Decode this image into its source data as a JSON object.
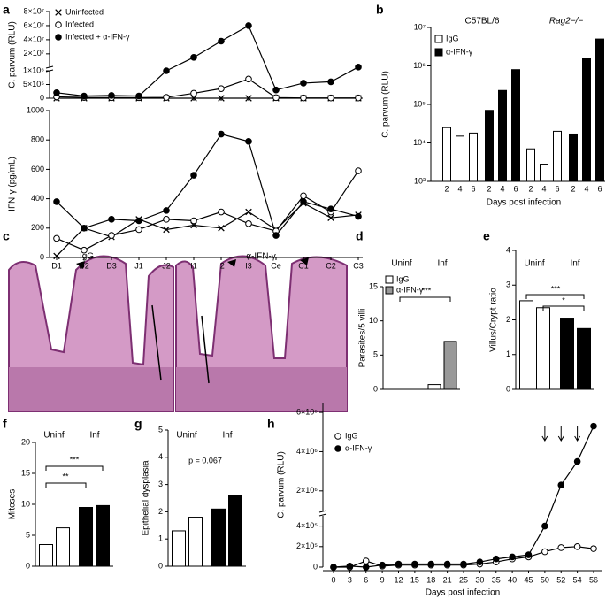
{
  "chart_data": [
    {
      "panel": "a",
      "type": "line",
      "categories": [
        "D1",
        "D2",
        "D3",
        "J1",
        "J2",
        "I1",
        "I2",
        "I3",
        "Ce",
        "C1",
        "C2",
        "C3"
      ],
      "subplots": [
        {
          "ylabel": "C. parvum (RLU)",
          "ylim": [
            [
              0,
              1000000
            ],
            [
              1000000,
              80000000
            ]
          ],
          "yticks": [
            0,
            {
              "value": 500000,
              "label": "5×10⁵"
            },
            {
              "value": 1000000,
              "label": "1×10⁶"
            },
            {
              "value": 20000000,
              "label": "2×10⁷"
            },
            {
              "value": 40000000,
              "label": "4×10⁷"
            },
            {
              "value": 60000000,
              "label": "6×10⁷"
            },
            {
              "value": 80000000,
              "label": "8×10⁷"
            }
          ],
          "series": [
            {
              "name": "Uninfected",
              "marker": "x",
              "color": "#000000",
              "values": [
                0,
                0,
                0,
                0,
                0,
                0,
                0,
                0,
                0,
                0,
                0,
                0
              ]
            },
            {
              "name": "Infected",
              "marker": "open",
              "color": "#000000",
              "values": [
                50000,
                30000,
                20000,
                20000,
                30000,
                180000,
                350000,
                700000,
                20000,
                10000,
                10000,
                10000
              ]
            },
            {
              "name": "Infected + α-IFN-γ",
              "marker": "filled",
              "color": "#000000",
              "values": [
                200000,
                80000,
                100000,
                80000,
                1000000,
                15000000,
                38000000,
                60000000,
                300000,
                550000,
                600000,
                1200000
              ]
            }
          ]
        },
        {
          "ylabel": "IFN-γ (pg/mL)",
          "ylim": [
            0,
            1000
          ],
          "yticks": [
            0,
            200,
            400,
            600,
            800,
            1000
          ],
          "series": [
            {
              "marker": "x",
              "color": "#000000",
              "values": [
                10,
                200,
                140,
                260,
                190,
                220,
                200,
                310,
                190,
                370,
                270,
                290
              ]
            },
            {
              "marker": "open",
              "color": "#000000",
              "values": [
                130,
                50,
                150,
                190,
                260,
                250,
                310,
                230,
                180,
                420,
                310,
                590
              ]
            },
            {
              "marker": "filled",
              "color": "#000000",
              "values": [
                380,
                200,
                260,
                250,
                320,
                560,
                840,
                790,
                150,
                380,
                330,
                280
              ]
            }
          ]
        }
      ]
    },
    {
      "panel": "b",
      "type": "bar",
      "log_scale": true,
      "groups": [
        "C57BL/6",
        "Rag2−/−"
      ],
      "categories": [
        "2",
        "4",
        "6"
      ],
      "xlabel": "Days post infection",
      "ylabel": "C. parvum (RLU)",
      "ylim": [
        1000,
        10000000
      ],
      "yticks": [
        {
          "value": 1000,
          "label": "10³"
        },
        {
          "value": 10000,
          "label": "10⁴"
        },
        {
          "value": 100000,
          "label": "10⁵"
        },
        {
          "value": 1000000,
          "label": "10⁶"
        },
        {
          "value": 10000000,
          "label": "10⁷"
        }
      ],
      "series": [
        {
          "name": "IgG",
          "color": "#ffffff",
          "values": [
            [
              25000,
              15000,
              18000
            ],
            [
              7000,
              2800,
              20000
            ]
          ]
        },
        {
          "name": "α-IFN-γ",
          "color": "#000000",
          "values": [
            [
              70000,
              230000,
              800000
            ],
            [
              17000,
              1600000,
              5000000
            ]
          ]
        }
      ]
    },
    {
      "panel": "d",
      "type": "bar",
      "groups": [
        "Uninf",
        "Inf"
      ],
      "ylabel": "Parasites/5 villi",
      "ylim": [
        0,
        15
      ],
      "yticks": [
        0,
        5,
        10,
        15
      ],
      "series": [
        {
          "name": "IgG",
          "colors": [
            "#ffffff",
            "#ffffff"
          ],
          "values": [
            0,
            0.7
          ]
        },
        {
          "name": "α-IFN-γ",
          "colors": [
            "#999999",
            "#999999"
          ],
          "values": [
            0,
            7
          ]
        }
      ],
      "annotations": [
        "***"
      ]
    },
    {
      "panel": "e",
      "type": "bar",
      "groups": [
        "Uninf",
        "Inf"
      ],
      "ylabel": "Villus/Crypt ratio",
      "ylim": [
        0,
        4
      ],
      "yticks": [
        0,
        1,
        2,
        3,
        4
      ],
      "series": [
        {
          "colors": [
            "#ffffff",
            "#000000"
          ],
          "values": [
            2.55,
            2.05
          ]
        },
        {
          "colors": [
            "#ffffff",
            "#000000"
          ],
          "values": [
            2.35,
            1.75
          ]
        }
      ],
      "annotations": [
        "***",
        "*"
      ]
    },
    {
      "panel": "f",
      "type": "bar",
      "groups": [
        "Uninf",
        "Inf"
      ],
      "ylabel": "Mitoses",
      "ylim": [
        0,
        20
      ],
      "yticks": [
        0,
        5,
        10,
        15,
        20
      ],
      "series": [
        {
          "colors": [
            "#ffffff",
            "#000000"
          ],
          "values": [
            3.5,
            9.5
          ]
        },
        {
          "colors": [
            "#ffffff",
            "#000000"
          ],
          "values": [
            6.2,
            9.8
          ]
        }
      ],
      "annotations": [
        "***",
        "**"
      ]
    },
    {
      "panel": "g",
      "type": "bar",
      "groups": [
        "Uninf",
        "Inf"
      ],
      "ylabel": "Epithelial dysplasia",
      "ylim": [
        0,
        5
      ],
      "yticks": [
        0,
        1,
        2,
        3,
        4,
        5
      ],
      "series": [
        {
          "colors": [
            "#ffffff",
            "#000000"
          ],
          "values": [
            1.3,
            2.1
          ]
        },
        {
          "colors": [
            "#ffffff",
            "#000000"
          ],
          "values": [
            1.8,
            2.6
          ]
        }
      ],
      "annotations": [
        "p = 0.067"
      ]
    },
    {
      "panel": "h",
      "type": "line",
      "categories": [
        "0",
        "3",
        "6",
        "9",
        "12",
        "15",
        "18",
        "21",
        "25",
        "30",
        "35",
        "40",
        "45",
        "50",
        "52",
        "54",
        "56"
      ],
      "xlabel": "Days post infection",
      "ylabel": "C. parvum (RLU)",
      "ylim": [
        [
          0,
          500000
        ],
        [
          1000000,
          6500000
        ]
      ],
      "yticks": [
        0,
        {
          "value": 200000,
          "label": "2×10⁵"
        },
        {
          "value": 400000,
          "label": "4×10⁵"
        },
        {
          "value": 2000000,
          "label": "2×10⁶"
        },
        {
          "value": 4000000,
          "label": "4×10⁶"
        },
        {
          "value": 6000000,
          "label": "6×10⁶"
        }
      ],
      "series": [
        {
          "name": "IgG",
          "marker": "open",
          "color": "#000000",
          "values": [
            0,
            0,
            60000,
            10000,
            20000,
            20000,
            20000,
            20000,
            20000,
            30000,
            50000,
            80000,
            100000,
            150000,
            190000,
            200000,
            180000
          ]
        },
        {
          "name": "α-IFN-γ",
          "marker": "filled",
          "color": "#000000",
          "values": [
            0,
            10000,
            0,
            20000,
            30000,
            30000,
            30000,
            30000,
            30000,
            50000,
            80000,
            100000,
            120000,
            400000,
            2300000,
            3500000,
            5300000
          ]
        }
      ]
    }
  ],
  "image_panel": {
    "panel": "c",
    "labels": [
      "IgG",
      "α-IFN-γ"
    ]
  }
}
